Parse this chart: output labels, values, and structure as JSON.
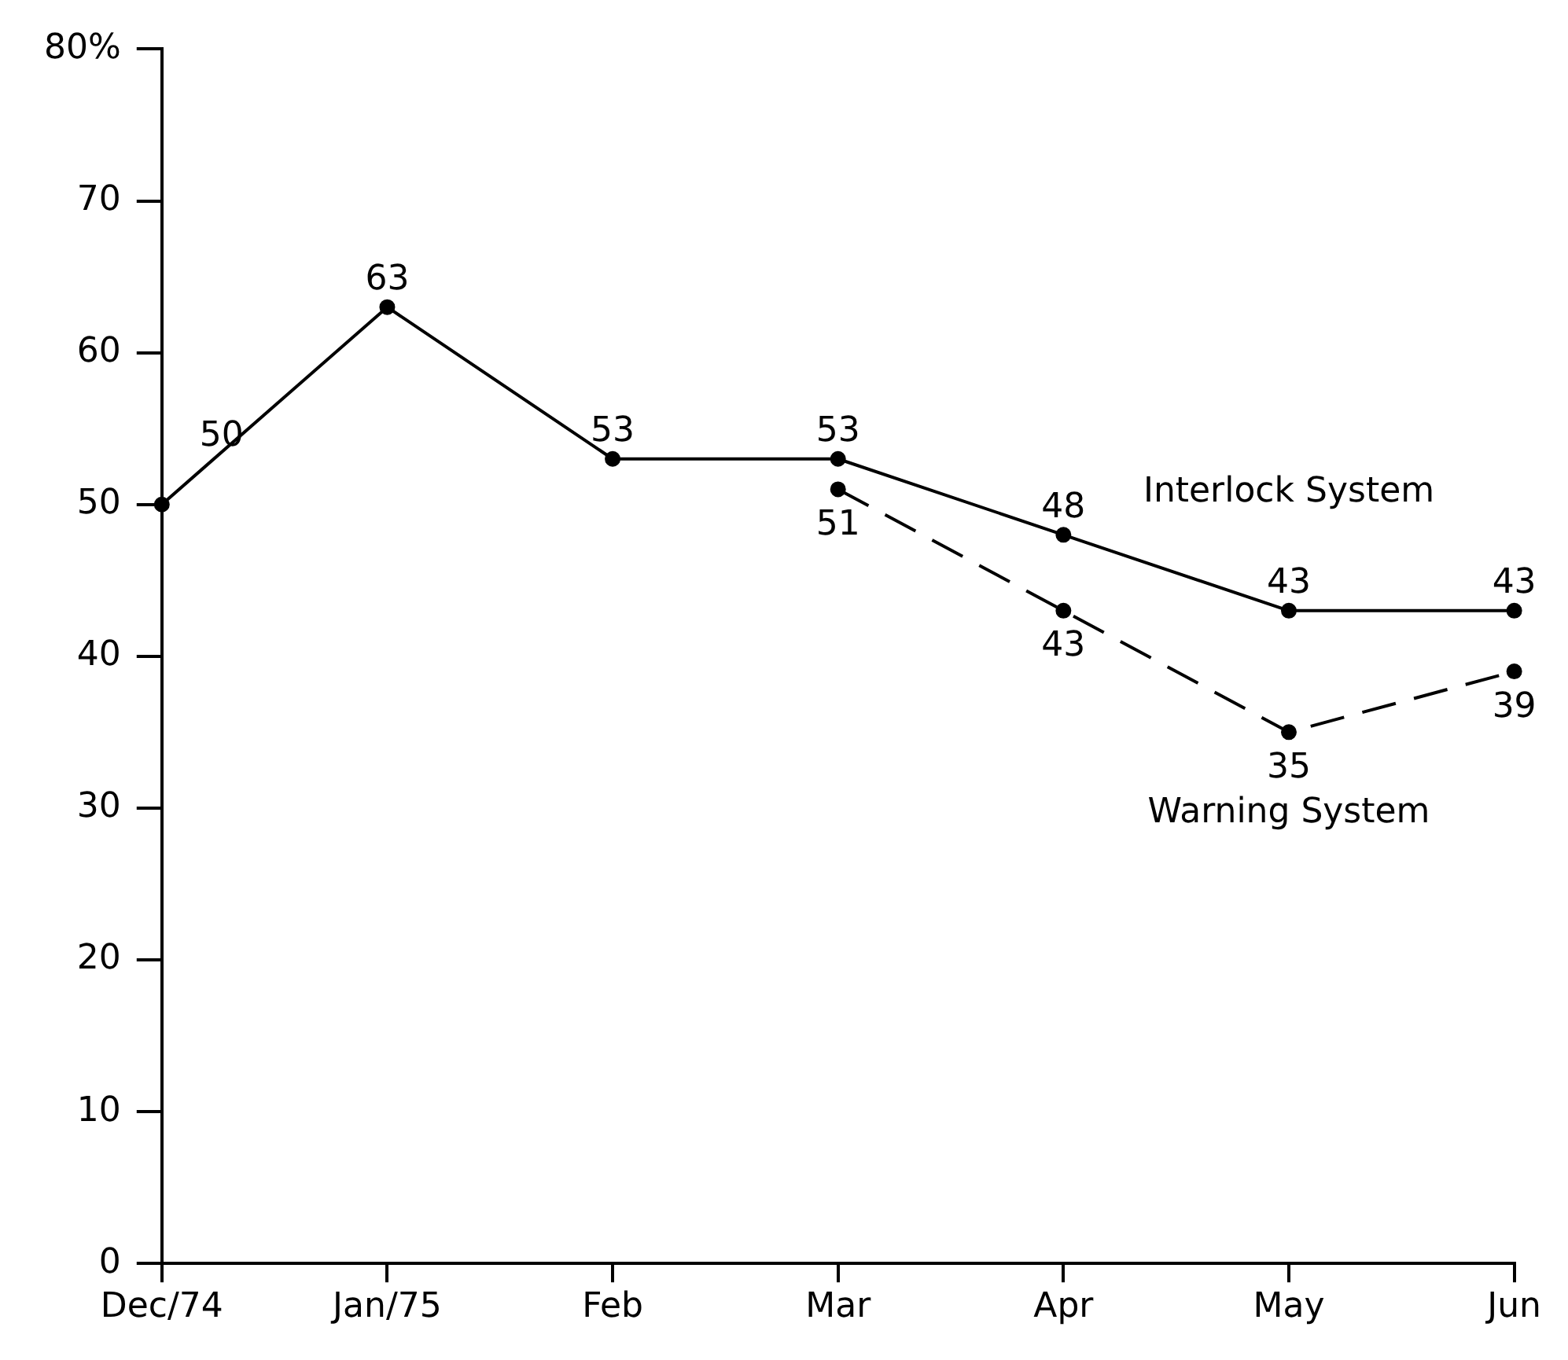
{
  "chart_data": {
    "type": "line",
    "categories": [
      "Dec/74",
      "Jan/75",
      "Feb",
      "Mar",
      "Apr",
      "May",
      "Jun"
    ],
    "series": [
      {
        "name": "Interlock System",
        "color": "#000000",
        "line_style": "solid",
        "values": [
          50,
          63,
          53,
          53,
          48,
          43,
          43
        ]
      },
      {
        "name": "Warning System",
        "color": "#000000",
        "line_style": "dashed",
        "values": [
          null,
          null,
          null,
          51,
          43,
          35,
          39
        ]
      }
    ],
    "ylim": [
      0,
      80
    ],
    "yticks": [
      0,
      10,
      20,
      30,
      40,
      50,
      60,
      70,
      {
        "value": 80,
        "label": "80%"
      }
    ],
    "grid": false,
    "legend": false,
    "marker": "circle",
    "data_labels": true
  }
}
